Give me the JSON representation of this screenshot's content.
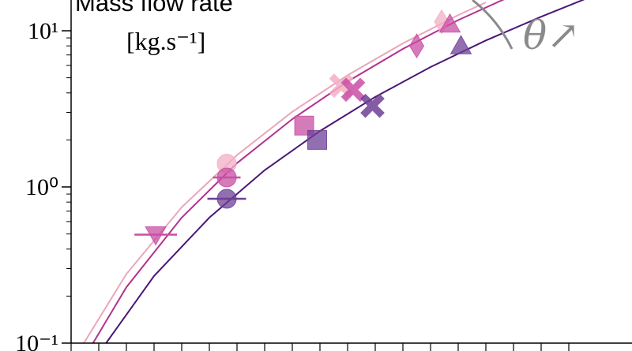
{
  "chart_data": {
    "type": "scatter",
    "title": "Mass flow rate",
    "y_label": "[kg.s⁻¹]",
    "annotation": "θ↗",
    "ylog": true,
    "xlim": [
      0,
      18.5
    ],
    "ylim": [
      0.1,
      16
    ],
    "xticks": [
      0,
      1,
      2,
      3,
      4,
      5,
      6,
      7,
      8,
      9,
      10,
      11,
      12,
      13,
      14,
      15,
      16,
      17,
      18
    ],
    "yticks": [
      {
        "value": 0.1,
        "label": "10⁻¹"
      },
      {
        "value": 1,
        "label": "10⁰"
      },
      {
        "value": 10,
        "label": "10¹"
      }
    ],
    "yticks_minor": [
      0.2,
      0.3,
      0.4,
      0.5,
      0.6,
      0.7,
      0.8,
      0.9,
      2,
      3,
      4,
      5,
      6,
      7,
      8,
      9
    ],
    "points": [
      {
        "x": 5.63,
        "y": 1.41,
        "color": "#f2afc6",
        "marker": "circle"
      },
      {
        "x": 9.77,
        "y": 4.45,
        "color": "#f2afc6",
        "marker": "x"
      },
      {
        "x": 13.4,
        "y": 11.4,
        "color": "#f2afc6",
        "marker": "diamond"
      },
      {
        "x": 3.06,
        "y": 0.495,
        "xerr": 0.77,
        "color": "#c84fa3",
        "marker": "triangle-down"
      },
      {
        "x": 5.63,
        "y": 1.15,
        "xerr": 0.5,
        "color": "#c84fa3",
        "marker": "circle"
      },
      {
        "x": 8.43,
        "y": 2.47,
        "color": "#c84fa3",
        "marker": "square"
      },
      {
        "x": 10.2,
        "y": 4.19,
        "color": "#c84fa3",
        "marker": "x"
      },
      {
        "x": 12.5,
        "y": 8.0,
        "color": "#c84fa3",
        "marker": "diamond"
      },
      {
        "x": 13.7,
        "y": 11.0,
        "color": "#c84fa3",
        "marker": "triangle-up"
      },
      {
        "x": 5.63,
        "y": 0.84,
        "xerr": 0.7,
        "color": "#6d3f95",
        "marker": "circle"
      },
      {
        "x": 8.9,
        "y": 2.0,
        "color": "#6d3f95",
        "marker": "square"
      },
      {
        "x": 10.9,
        "y": 3.31,
        "color": "#6d3f95",
        "marker": "x"
      },
      {
        "x": 14.1,
        "y": 8.0,
        "color": "#6d3f95",
        "marker": "triangle-up"
      }
    ],
    "fits": [
      {
        "color": "#eaa6bc",
        "x": [
          0.3,
          2,
          4,
          6,
          8,
          10,
          12,
          14,
          15
        ],
        "values": [
          0.09,
          0.277,
          0.741,
          1.6,
          3.03,
          5.19,
          8.3,
          12.6,
          15.2
        ]
      },
      {
        "color": "#b3318f",
        "x": [
          0.57,
          2,
          4,
          6,
          8,
          10,
          12,
          14,
          16.7
        ],
        "values": [
          0.086,
          0.228,
          0.636,
          1.42,
          2.72,
          4.73,
          7.65,
          11.7,
          19.3
        ]
      },
      {
        "color": "#4b1776",
        "x": [
          1,
          3,
          5,
          7,
          9,
          11,
          13,
          15,
          17,
          18.6
        ],
        "values": [
          0.086,
          0.269,
          0.636,
          1.28,
          2.28,
          3.77,
          5.86,
          8.67,
          12.3,
          16
        ]
      }
    ]
  }
}
